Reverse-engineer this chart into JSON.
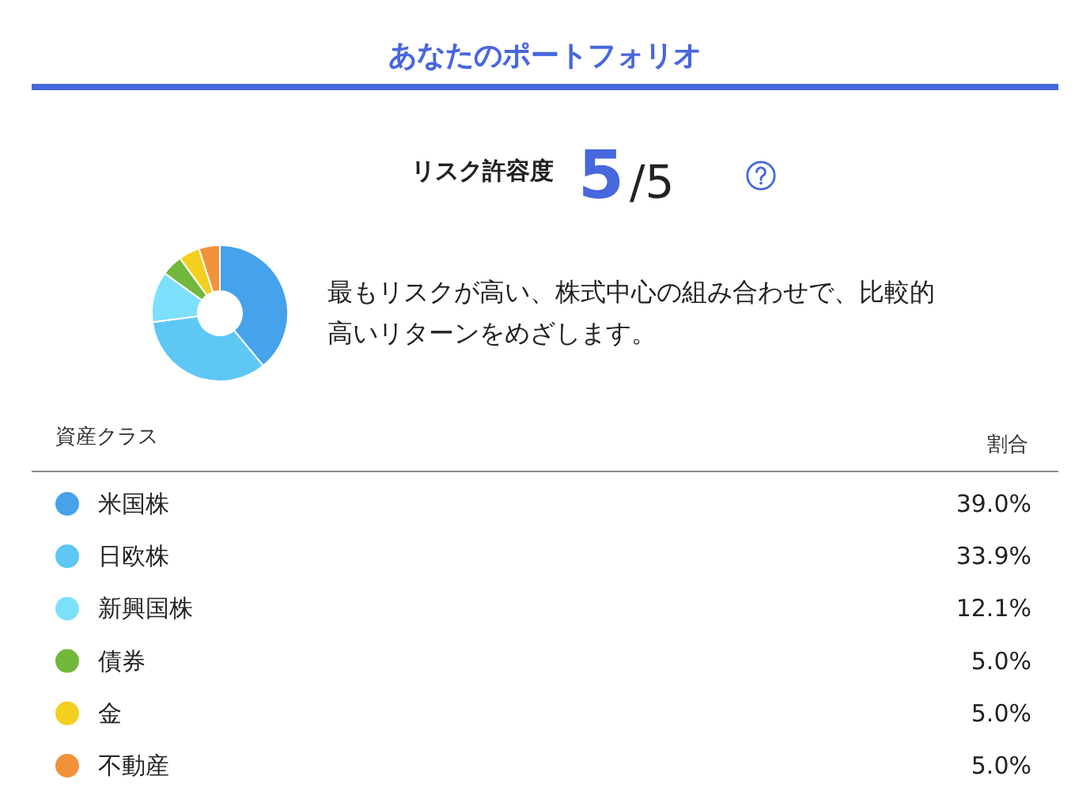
{
  "chart_data": {
    "type": "donut",
    "title": "あなたのポートフォリオ",
    "annotations": [
      "リスク許容度",
      "5",
      "/5",
      "最もリスクが高い、株式中心の組み合わせで、比較的高いリターンをめざします。",
      "割合"
    ],
    "legend_title": "資産クラス",
    "legend": "bottom",
    "categories": [
      "米国株",
      "日欧株",
      "新興国株",
      "債券",
      "金",
      "不動産"
    ],
    "values": [
      39.0,
      33.9,
      12.1,
      5.0,
      5.0,
      5.0
    ],
    "colors": [
      "#45a2eb",
      "#5ec7f4",
      "#7de0fa",
      "#72b83c",
      "#f3d01f",
      "#f1923a"
    ],
    "value_labels": [
      "39.0%",
      "33.9%",
      "12.1%",
      "5.0%",
      "5.0%",
      "5.0%"
    ]
  }
}
